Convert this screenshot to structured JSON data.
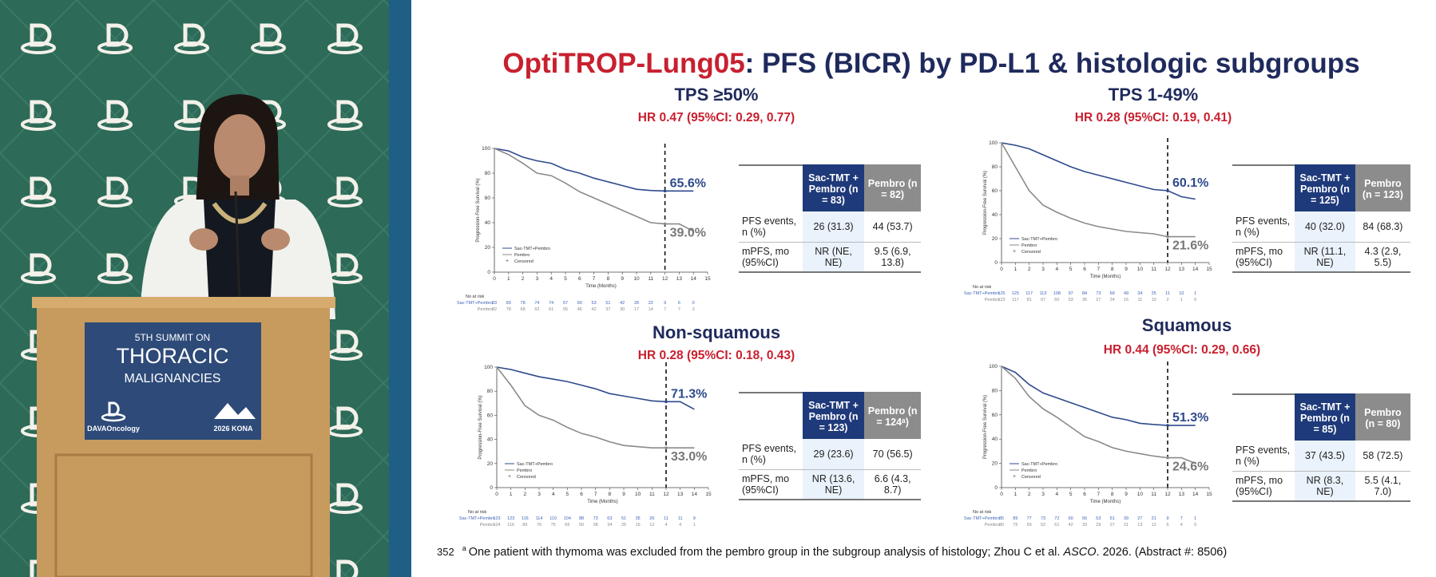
{
  "photo": {
    "sign_lines": [
      "5TH SUMMIT ON",
      "THORACIC",
      "MALIGNANCIES"
    ],
    "logo": "DAVAOncology",
    "event": "2026 KONA"
  },
  "slide": {
    "title_highlight": "OptiTROP-Lung05",
    "title_rest": ": PFS (BICR) by PD-L1 & histologic subgroups",
    "footnote_number": "352",
    "footnote_marker": "a",
    "footnote_text": "One patient with thymoma was excluded from the pembro group in the subgroup analysis of histology; Zhou C et al. ",
    "footnote_journal": "ASCO",
    "footnote_end": ". 2026. (Abstract #: 8506)"
  },
  "chart_data": [
    {
      "type": "line",
      "title": "TPS ≥50%",
      "subtitle": "HR 0.47 (95%CI: 0.29, 0.77)",
      "x_label": "Time (Months)",
      "y_label": "Progression-Free Survival (%)",
      "xlim": [
        0,
        15
      ],
      "ylim": [
        0,
        100
      ],
      "xticks": [
        0,
        1,
        2,
        3,
        4,
        5,
        6,
        7,
        8,
        9,
        10,
        11,
        12,
        13,
        14,
        15
      ],
      "yticks": [
        0,
        20,
        40,
        60,
        80,
        100
      ],
      "reference_x": 12,
      "legend": "lower-left",
      "censored_label": "Censored",
      "at_risk_title": "No at risk",
      "x": [
        0,
        1,
        2,
        3,
        4,
        5,
        6,
        7,
        8,
        9,
        10,
        11,
        12,
        13,
        14
      ],
      "series": [
        {
          "name": "Sac-TMT+Pembro",
          "color": "#2e4a8c",
          "values": [
            100,
            98,
            93,
            90,
            88,
            83,
            80,
            76,
            73,
            70,
            67,
            66,
            65.6,
            65.6,
            65.6
          ],
          "value": 65.6,
          "value_label": "65.6%",
          "at_risk": [
            83,
            83,
            78,
            74,
            74,
            67,
            60,
            53,
            51,
            42,
            28,
            22,
            9,
            6,
            0
          ]
        },
        {
          "name": "Pembro",
          "color": "#8a8a8a",
          "values": [
            100,
            95,
            88,
            80,
            78,
            72,
            65,
            60,
            55,
            50,
            45,
            40,
            39,
            39,
            33
          ],
          "value": 39.0,
          "value_label": "39.0%",
          "at_risk": [
            82,
            78,
            68,
            62,
            61,
            55,
            46,
            42,
            37,
            30,
            17,
            14,
            7,
            7,
            3
          ]
        }
      ],
      "table": {
        "columns": [
          "Sac-TMT + Pembro (n = 83)",
          "Pembro (n = 82)"
        ],
        "rows": [
          [
            "PFS events, n (%)",
            "26 (31.3)",
            "44 (53.7)"
          ],
          [
            "mPFS, mo (95%CI)",
            "NR (NE, NE)",
            "9.5 (6.9, 13.8)"
          ]
        ]
      }
    },
    {
      "type": "line",
      "title": "TPS 1-49%",
      "subtitle": "HR 0.28 (95%CI: 0.19, 0.41)",
      "x_label": "Time (Months)",
      "y_label": "Progression-Free Survival (%)",
      "xlim": [
        0,
        15
      ],
      "ylim": [
        0,
        100
      ],
      "xticks": [
        0,
        1,
        2,
        3,
        4,
        5,
        6,
        7,
        8,
        9,
        10,
        11,
        12,
        13,
        14,
        15
      ],
      "yticks": [
        0,
        20,
        40,
        60,
        80,
        100
      ],
      "reference_x": 12,
      "legend": "lower-left",
      "censored_label": "Censored",
      "at_risk_title": "No at risk",
      "x": [
        0,
        1,
        2,
        3,
        4,
        5,
        6,
        7,
        8,
        9,
        10,
        11,
        12,
        13,
        14
      ],
      "series": [
        {
          "name": "Sac-TMT+Pembro",
          "color": "#2e4a8c",
          "values": [
            100,
            98,
            95,
            90,
            85,
            80,
            76,
            73,
            70,
            67,
            64,
            61,
            60.1,
            55,
            53
          ],
          "value": 60.1,
          "value_label": "60.1%",
          "at_risk": [
            125,
            125,
            117,
            113,
            108,
            97,
            84,
            73,
            69,
            49,
            34,
            25,
            11,
            10,
            1
          ]
        },
        {
          "name": "Pembro",
          "color": "#8a8a8a",
          "values": [
            100,
            80,
            60,
            48,
            42,
            37,
            33,
            30,
            28,
            26,
            25,
            24,
            21.6,
            21.6,
            21.6
          ],
          "value": 21.6,
          "value_label": "21.6%",
          "at_risk": [
            123,
            117,
            81,
            67,
            60,
            53,
            36,
            27,
            24,
            16,
            11,
            10,
            2,
            1,
            0
          ]
        }
      ],
      "table": {
        "columns": [
          "Sac-TMT + Pembro (n = 125)",
          "Pembro (n = 123)"
        ],
        "rows": [
          [
            "PFS events, n (%)",
            "40 (32.0)",
            "84 (68.3)"
          ],
          [
            "mPFS, mo (95%CI)",
            "NR (11.1, NE)",
            "4.3 (2.9, 5.5)"
          ]
        ]
      }
    },
    {
      "type": "line",
      "title": "Non-squamous",
      "subtitle": "HR 0.28 (95%CI: 0.18, 0.43)",
      "x_label": "Time (Months)",
      "y_label": "Progression-Free Survival (%)",
      "xlim": [
        0,
        15
      ],
      "ylim": [
        0,
        100
      ],
      "xticks": [
        0,
        1,
        2,
        3,
        4,
        5,
        6,
        7,
        8,
        9,
        10,
        11,
        12,
        13,
        14,
        15
      ],
      "yticks": [
        0,
        20,
        40,
        60,
        80,
        100
      ],
      "reference_x": 12,
      "legend": "lower-left",
      "censored_label": "Censored",
      "at_risk_title": "No at risk",
      "x": [
        0,
        1,
        2,
        3,
        4,
        5,
        6,
        7,
        8,
        9,
        10,
        11,
        12,
        13,
        14
      ],
      "series": [
        {
          "name": "Sac-TMT+Pembro",
          "color": "#2e4a8c",
          "values": [
            100,
            98,
            95,
            92,
            90,
            88,
            85,
            82,
            78,
            76,
            74,
            72,
            71.3,
            71.3,
            65
          ],
          "value": 71.3,
          "value_label": "71.3%",
          "at_risk": [
            123,
            123,
            116,
            114,
            110,
            104,
            88,
            73,
            63,
            51,
            35,
            26,
            11,
            11,
            9
          ]
        },
        {
          "name": "Pembro",
          "color": "#8a8a8a",
          "values": [
            100,
            85,
            68,
            60,
            56,
            50,
            45,
            42,
            38,
            35,
            34,
            33,
            33,
            33,
            33
          ],
          "value": 33.0,
          "value_label": "33.0%",
          "at_risk": [
            124,
            116,
            89,
            76,
            75,
            66,
            50,
            38,
            34,
            25,
            15,
            12,
            4,
            4,
            1
          ]
        }
      ],
      "table": {
        "columns": [
          "Sac-TMT + Pembro (n = 123)",
          "Pembro (n = 124ᵃ)"
        ],
        "rows": [
          [
            "PFS events, n (%)",
            "29 (23.6)",
            "70 (56.5)"
          ],
          [
            "mPFS, mo (95%CI)",
            "NR (13.6, NE)",
            "6.6 (4.3, 8.7)"
          ]
        ]
      }
    },
    {
      "type": "line",
      "title": "Squamous",
      "subtitle": "HR 0.44 (95%CI: 0.29, 0.66)",
      "x_label": "Time (Months)",
      "y_label": "Progression-Free Survival (%)",
      "xlim": [
        0,
        15
      ],
      "ylim": [
        0,
        100
      ],
      "xticks": [
        0,
        1,
        2,
        3,
        4,
        5,
        6,
        7,
        8,
        9,
        10,
        11,
        12,
        13,
        14,
        15
      ],
      "yticks": [
        0,
        20,
        40,
        60,
        80,
        100
      ],
      "reference_x": 12,
      "legend": "lower-left",
      "censored_label": "Censored",
      "at_risk_title": "No at risk",
      "x": [
        0,
        1,
        2,
        3,
        4,
        5,
        6,
        7,
        8,
        9,
        10,
        11,
        12,
        13,
        14
      ],
      "series": [
        {
          "name": "Sac-TMT+Pembro",
          "color": "#2e4a8c",
          "values": [
            100,
            95,
            85,
            78,
            74,
            70,
            66,
            62,
            58,
            56,
            53,
            52,
            51.3,
            51.3,
            51.3
          ],
          "value": 51.3,
          "value_label": "51.3%",
          "at_risk": [
            85,
            85,
            77,
            73,
            72,
            60,
            56,
            53,
            51,
            39,
            27,
            21,
            9,
            7,
            1
          ]
        },
        {
          "name": "Pembro",
          "color": "#8a8a8a",
          "values": [
            100,
            90,
            75,
            65,
            58,
            50,
            42,
            38,
            33,
            30,
            28,
            26,
            24.6,
            24.6,
            20
          ],
          "value": 24.6,
          "value_label": "24.6%",
          "at_risk": [
            80,
            75,
            59,
            52,
            51,
            42,
            33,
            29,
            27,
            21,
            13,
            12,
            5,
            4,
            0
          ]
        }
      ],
      "table": {
        "columns": [
          "Sac-TMT + Pembro (n = 85)",
          "Pembro (n = 80)"
        ],
        "rows": [
          [
            "PFS events, n (%)",
            "37 (43.5)",
            "58 (72.5)"
          ],
          [
            "mPFS, mo (95%CI)",
            "NR (8.3, NE)",
            "5.5 (4.1, 7.0)"
          ]
        ]
      }
    }
  ]
}
